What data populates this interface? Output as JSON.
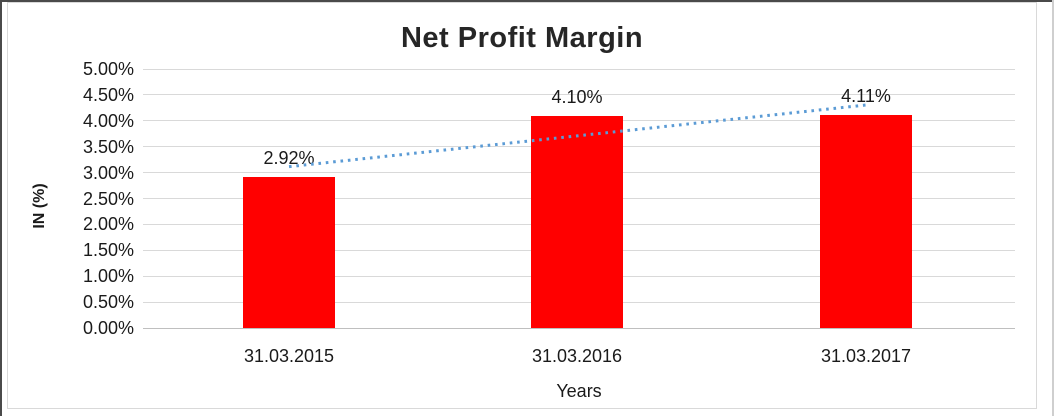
{
  "chart_data": {
    "type": "bar",
    "title": "Net Profit Margin",
    "categories": [
      "31.03.2015",
      "31.03.2016",
      "31.03.2017"
    ],
    "series": [
      {
        "name": "Net Profit Margin",
        "values": [
          2.92,
          4.1,
          4.11
        ]
      }
    ],
    "data_labels": [
      "2.92%",
      "4.10%",
      "4.11%"
    ],
    "xlabel": "Years",
    "ylabel": "IN (%)",
    "ylim": [
      0,
      5
    ],
    "ytick_step": 0.5,
    "ytick_labels": [
      "5.00%",
      "4.50%",
      "4.00%",
      "3.50%",
      "3.00%",
      "2.50%",
      "2.00%",
      "1.50%",
      "1.00%",
      "0.50%",
      "0.00%"
    ],
    "grid": true,
    "legend": "none",
    "bar_color": "#ff0000",
    "gridline_color": "#d9d9d9",
    "axis_line_color": "#bfbfbf",
    "trendline": {
      "type": "linear",
      "style": "dotted",
      "color": "#5b9bd5",
      "start_value": 3.115,
      "end_value": 4.305
    }
  }
}
